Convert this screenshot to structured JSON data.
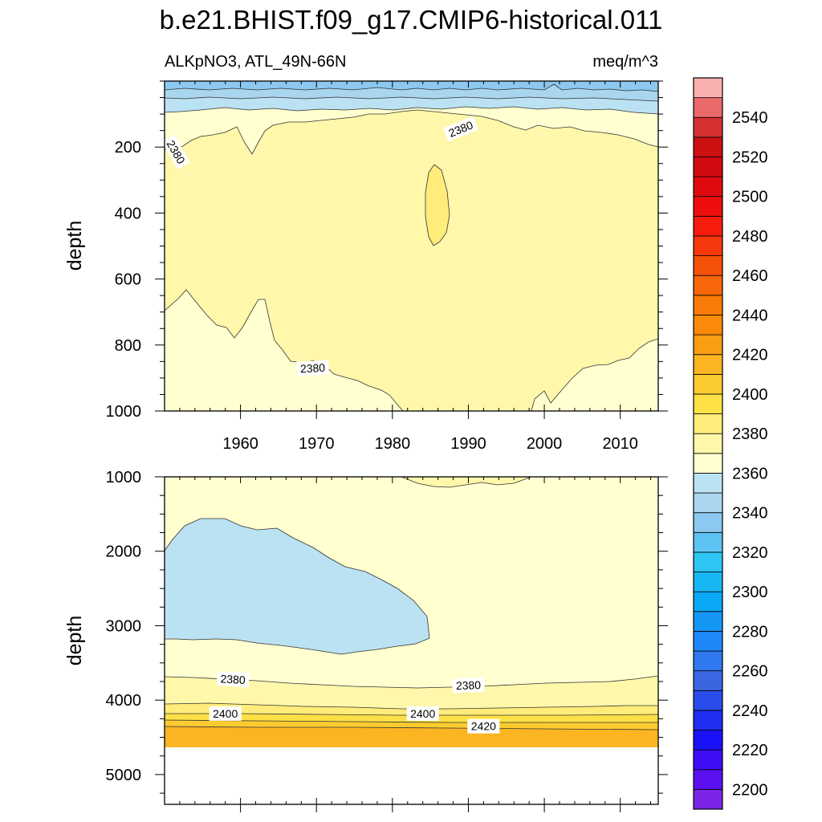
{
  "chart_data": {
    "type": "contour",
    "title": "b.e21.BHIST.f09_g17.CMIP6-historical.011",
    "variable_label": "ALKpNO3, ATL_49N-66N",
    "units_label": "meq/m^3",
    "x_axis": {
      "range": [
        1950,
        2015
      ],
      "ticks": [
        "1960",
        "1970",
        "1980",
        "1990",
        "2000",
        "2010"
      ]
    },
    "panels": [
      {
        "name": "upper",
        "ylabel": "depth",
        "ylim": [
          0,
          1000
        ],
        "y_ticks": [
          "200",
          "400",
          "600",
          "800",
          "1000"
        ],
        "contour_labels": [
          {
            "text": "2380",
            "x": 1951.5,
            "y": 215,
            "rotate": 60
          },
          {
            "text": "2380",
            "x": 1989.0,
            "y": 145,
            "rotate": -22
          },
          {
            "text": "2380",
            "x": 1969.5,
            "y": 870,
            "rotate": -3
          }
        ]
      },
      {
        "name": "lower",
        "ylabel": "depth",
        "ylim": [
          1000,
          5400
        ],
        "y_ticks": [
          "1000",
          "2000",
          "3000",
          "4000",
          "5000"
        ],
        "contour_labels": [
          {
            "text": "2380",
            "x": 1959.0,
            "y": 3720,
            "rotate": 3
          },
          {
            "text": "2380",
            "x": 1990.0,
            "y": 3800,
            "rotate": -2
          },
          {
            "text": "2400",
            "x": 1958.0,
            "y": 4180,
            "rotate": 0
          },
          {
            "text": "2400",
            "x": 1984.0,
            "y": 4180,
            "rotate": 0
          },
          {
            "text": "2420",
            "x": 1992.0,
            "y": 4350,
            "rotate": 0
          }
        ]
      }
    ],
    "colorbar": {
      "min": 2190,
      "max": 2560,
      "step": 10,
      "tick_labels": [
        "2200",
        "2220",
        "2240",
        "2260",
        "2280",
        "2300",
        "2320",
        "2340",
        "2360",
        "2380",
        "2400",
        "2420",
        "2440",
        "2460",
        "2480",
        "2500",
        "2520",
        "2540"
      ],
      "colors": [
        "#7b24e6",
        "#5a10f0",
        "#3f0df5",
        "#1a11f8",
        "#1f2ef0",
        "#2a4cea",
        "#3a66e2",
        "#2f78f0",
        "#1e88f8",
        "#1597f5",
        "#0ba8f5",
        "#19b6f4",
        "#2ec5f4",
        "#5cc3f2",
        "#8cc8ef",
        "#a9d6ee",
        "#bbe2f2",
        "#ffffd0",
        "#fff7aa",
        "#ffec7a",
        "#fde046",
        "#fccb30",
        "#fbb522",
        "#fb9d14",
        "#fb8a0a",
        "#f97a08",
        "#f76608",
        "#f55109",
        "#f5390c",
        "#f61c0e",
        "#ee0f0d",
        "#e00b10",
        "#d20a12",
        "#cc1010",
        "#d63030",
        "#ea6a6a",
        "#fbb0b0"
      ]
    }
  }
}
